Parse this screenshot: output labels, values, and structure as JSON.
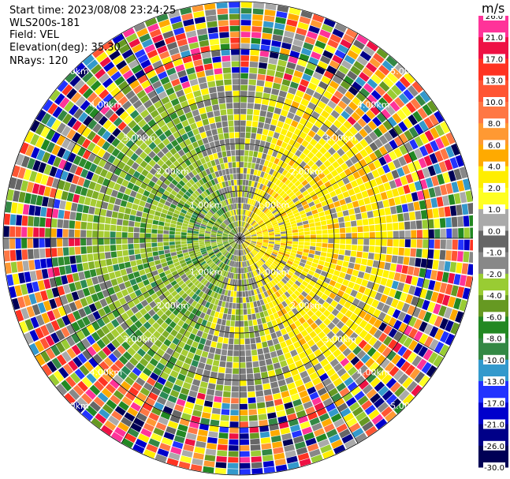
{
  "header": {
    "start_time": "Start time: 2023/08/08 23:24:25",
    "instrument": "WLS200s-181",
    "field": "Field: VEL",
    "elevation": "Elevation(deg): 35.30",
    "nrays": "NRays: 120"
  },
  "chart_data": {
    "type": "heatmap",
    "projection": "polar-ppi",
    "field": "VEL",
    "unit": "m/s",
    "n_rays": 120,
    "elevation_deg": 35.3,
    "max_range_km": 5.0,
    "range_ring_labels": [
      "1.00km",
      "2.00km",
      "3.00km",
      "4.00km",
      "5.00km"
    ],
    "range_ring_values_km": [
      1.0,
      2.0,
      3.0,
      4.0,
      5.0
    ],
    "colorbar": {
      "label": "m/s",
      "tick_labels": [
        "26.0",
        "21.0",
        "17.0",
        "13.0",
        "10.0",
        "8.0",
        "6.0",
        "4.0",
        "2.0",
        "1.0",
        "0.0",
        "-1.0",
        "-2.0",
        "-4.0",
        "-6.0",
        "-8.0",
        "-10.0",
        "-13.0",
        "-17.0",
        "-21.0",
        "-26.0",
        "-30.0"
      ],
      "colors": [
        "#ff3399",
        "#ee1144",
        "#ff3322",
        "#ff5533",
        "#ff7744",
        "#ff9933",
        "#ffaa00",
        "#ffee00",
        "#ffff22",
        "#aaaaaa",
        "#666666",
        "#888888",
        "#99cc33",
        "#669922",
        "#228822",
        "#338844",
        "#3399cc",
        "#2233ff",
        "#0000cc",
        "#000088",
        "#000055"
      ]
    },
    "pattern_notes": {
      "positive_sector": "east / northeast (yellow, orange)",
      "negative_sector": "west / southwest (green)",
      "noise_beyond_km": 3.5
    }
  }
}
